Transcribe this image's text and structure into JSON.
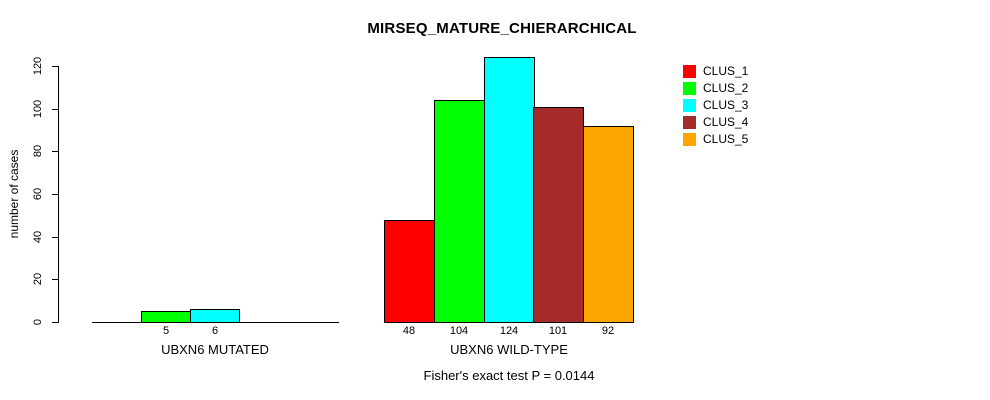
{
  "chart_data": {
    "type": "bar",
    "title": "MIRSEQ_MATURE_CHIERARCHICAL",
    "ylabel": "number of cases",
    "xlabel": "",
    "ylim": [
      0,
      120
    ],
    "y_ticks": [
      0,
      20,
      40,
      60,
      80,
      100,
      120
    ],
    "categories": [
      "UBXN6 MUTATED",
      "UBXN6 WILD-TYPE"
    ],
    "series": [
      {
        "name": "CLUS_1",
        "color": "#FF0000",
        "values": [
          0,
          48
        ]
      },
      {
        "name": "CLUS_2",
        "color": "#00FF00",
        "values": [
          5,
          104
        ]
      },
      {
        "name": "CLUS_3",
        "color": "#00FFFF",
        "values": [
          6,
          124
        ]
      },
      {
        "name": "CLUS_4",
        "color": "#A52A2A",
        "values": [
          0,
          101
        ]
      },
      {
        "name": "CLUS_5",
        "color": "#FFA500",
        "values": [
          0,
          92
        ]
      }
    ],
    "annotation": "Fisher's exact test P = 0.0144",
    "legend_position": "top-right",
    "grid": false,
    "bar_border_color": "#000000",
    "note_zero_bars": "bars with value 0 render as flat baseline segments with no value label"
  }
}
